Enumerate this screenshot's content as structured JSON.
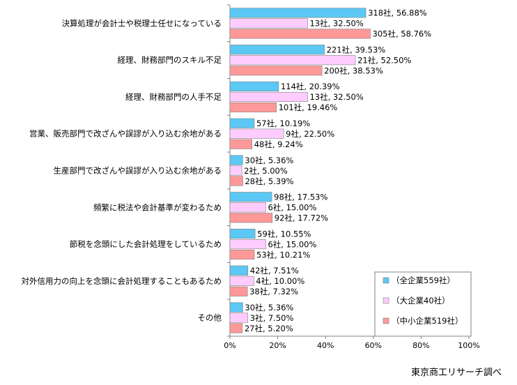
{
  "source": "東京商工リサーチ調べ",
  "chart_data": {
    "type": "bar",
    "orientation": "horizontal",
    "categories": [
      "決算処理が会計士や税理士任せになっている",
      "経理、財務部門のスキル不足",
      "経理、財務部門の人手不足",
      "営業、販売部門で改ざんや誤謬が入り込む余地がある",
      "生産部門で改ざんや誤謬が入り込む余地がある",
      "頻繁に税法や会計基準が変わるため",
      "節税を念頭にした会計処理をしているため",
      "対外信用力の向上を念頭に会計処理することもあるため",
      "その他"
    ],
    "series": [
      {
        "name": "（全企業559社）",
        "color": "#5BC8F5",
        "values": [
          56.88,
          39.53,
          20.39,
          10.19,
          5.36,
          17.53,
          10.55,
          7.51,
          5.36
        ],
        "labels": [
          "318社, 56.88%",
          "221社, 39.53%",
          "114社, 20.39%",
          "57社, 10.19%",
          "30社, 5.36%",
          "98社, 17.53%",
          "59社, 10.55%",
          "42社, 7.51%",
          "30社, 5.36%"
        ]
      },
      {
        "name": "（大企業40社）",
        "color": "#FFCCFF",
        "values": [
          32.5,
          52.5,
          32.5,
          22.5,
          5.0,
          15.0,
          15.0,
          10.0,
          7.5
        ],
        "labels": [
          "13社, 32.50%",
          "21社, 52.50%",
          "13社, 32.50%",
          "9社, 22.50%",
          "2社, 5.00%",
          "6社, 15.00%",
          "6社, 15.00%",
          "4社, 10.00%",
          "3社, 7.50%"
        ]
      },
      {
        "name": "（中小企業519社）",
        "color": "#FF9999",
        "values": [
          58.76,
          38.53,
          19.46,
          9.24,
          5.39,
          17.72,
          10.21,
          7.32,
          5.2
        ],
        "labels": [
          "305社, 58.76%",
          "200社, 38.53%",
          "101社, 19.46%",
          "48社, 9.24%",
          "28社, 5.39%",
          "92社, 17.72%",
          "53社, 10.21%",
          "38社, 7.32%",
          "27社, 5.20%"
        ]
      }
    ],
    "xlim": [
      0,
      100
    ],
    "x_ticks": [
      "0%",
      "20%",
      "40%",
      "60%",
      "80%",
      "100%"
    ],
    "grid": false,
    "legend_position": "bottom-right"
  }
}
